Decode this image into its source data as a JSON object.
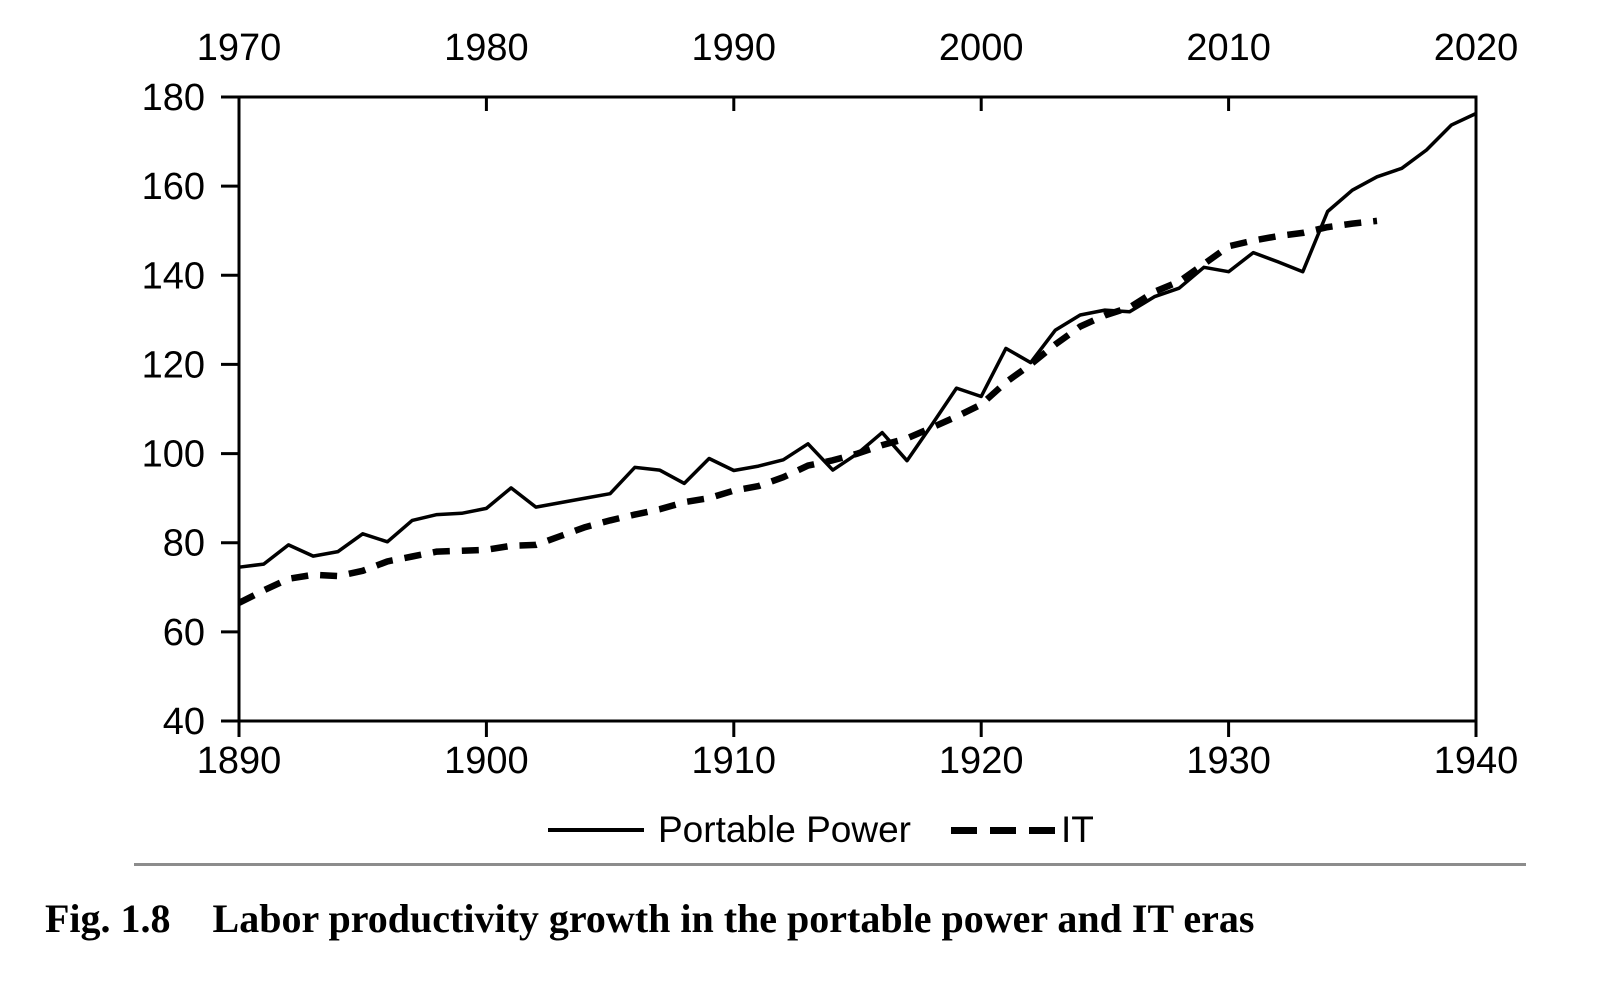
{
  "figure": {
    "caption_label": "Fig. 1.8",
    "caption_title": "Labor productivity growth in the portable power and IT eras"
  },
  "chart_data": {
    "type": "line",
    "title": "",
    "grid": false,
    "line_color": "#000000",
    "separator_color": "#8c8c8c",
    "legend_position": "bottom-center",
    "y_axis": {
      "range": [
        40,
        180
      ],
      "ticks": [
        40,
        60,
        80,
        100,
        120,
        140,
        160,
        180
      ]
    },
    "x_axis_bottom": {
      "range": [
        1890,
        1940
      ],
      "ticks": [
        1890,
        1900,
        1910,
        1920,
        1930,
        1940
      ]
    },
    "x_axis_top": {
      "range": [
        1970,
        2020
      ],
      "ticks": [
        1970,
        1980,
        1990,
        2000,
        2010,
        2020
      ]
    },
    "legend": [
      {
        "label": "Portable Power",
        "style": "solid"
      },
      {
        "label": "IT",
        "style": "dashed"
      }
    ],
    "series": [
      {
        "name": "Portable Power",
        "x_axis": "bottom",
        "line_style": "solid",
        "years": [
          1890,
          1891,
          1892,
          1893,
          1894,
          1895,
          1896,
          1897,
          1898,
          1899,
          1900,
          1901,
          1902,
          1903,
          1904,
          1905,
          1906,
          1907,
          1908,
          1909,
          1910,
          1911,
          1912,
          1913,
          1914,
          1915,
          1916,
          1917,
          1918,
          1919,
          1920,
          1921,
          1922,
          1923,
          1924,
          1925,
          1926,
          1927,
          1928,
          1929,
          1930,
          1931,
          1932,
          1933,
          1934,
          1935,
          1936,
          1937,
          1938,
          1939,
          1940
        ],
        "values": [
          74.5,
          75.2,
          79.5,
          77,
          78,
          82,
          80.2,
          85,
          86.3,
          86.6,
          87.7,
          92.3,
          88,
          89,
          90,
          91,
          96.9,
          96.3,
          93.3,
          98.9,
          96.2,
          97.2,
          98.6,
          102.2,
          96.3,
          100,
          104.7,
          98.4,
          106.4,
          114.7,
          112.8,
          123.6,
          120.4,
          127.7,
          131.1,
          132.2,
          131.8,
          135.2,
          137.1,
          141.8,
          140.8,
          145.1,
          143,
          140.8,
          154.3,
          159.1,
          162.1,
          164,
          168.1,
          173.7,
          176.3
        ]
      },
      {
        "name": "IT",
        "x_axis": "top",
        "line_style": "dashed",
        "years": [
          1970,
          1971,
          1972,
          1973,
          1974,
          1975,
          1976,
          1977,
          1978,
          1979,
          1980,
          1981,
          1982,
          1983,
          1984,
          1985,
          1986,
          1987,
          1988,
          1989,
          1990,
          1991,
          1992,
          1993,
          1994,
          1995,
          1996,
          1997,
          1998,
          1999,
          2000,
          2001,
          2002,
          2003,
          2004,
          2005,
          2006,
          2007,
          2008,
          2009,
          2010,
          2011,
          2012,
          2013,
          2014,
          2015,
          2016
        ],
        "values": [
          66.5,
          69.3,
          71.9,
          72.8,
          72.5,
          73.7,
          75.8,
          76.9,
          78,
          78.2,
          78.4,
          79.3,
          79.5,
          81.5,
          83.5,
          85,
          86.3,
          87.5,
          89.1,
          90,
          91.7,
          92.7,
          94.7,
          97.3,
          98.5,
          100,
          101.9,
          103.4,
          105.8,
          108.3,
          111,
          116,
          120,
          124.5,
          128.5,
          131,
          132.8,
          136.3,
          138.6,
          142.5,
          146.5,
          147.8,
          148.8,
          149.5,
          150.8,
          151.6,
          152.2
        ]
      }
    ]
  }
}
